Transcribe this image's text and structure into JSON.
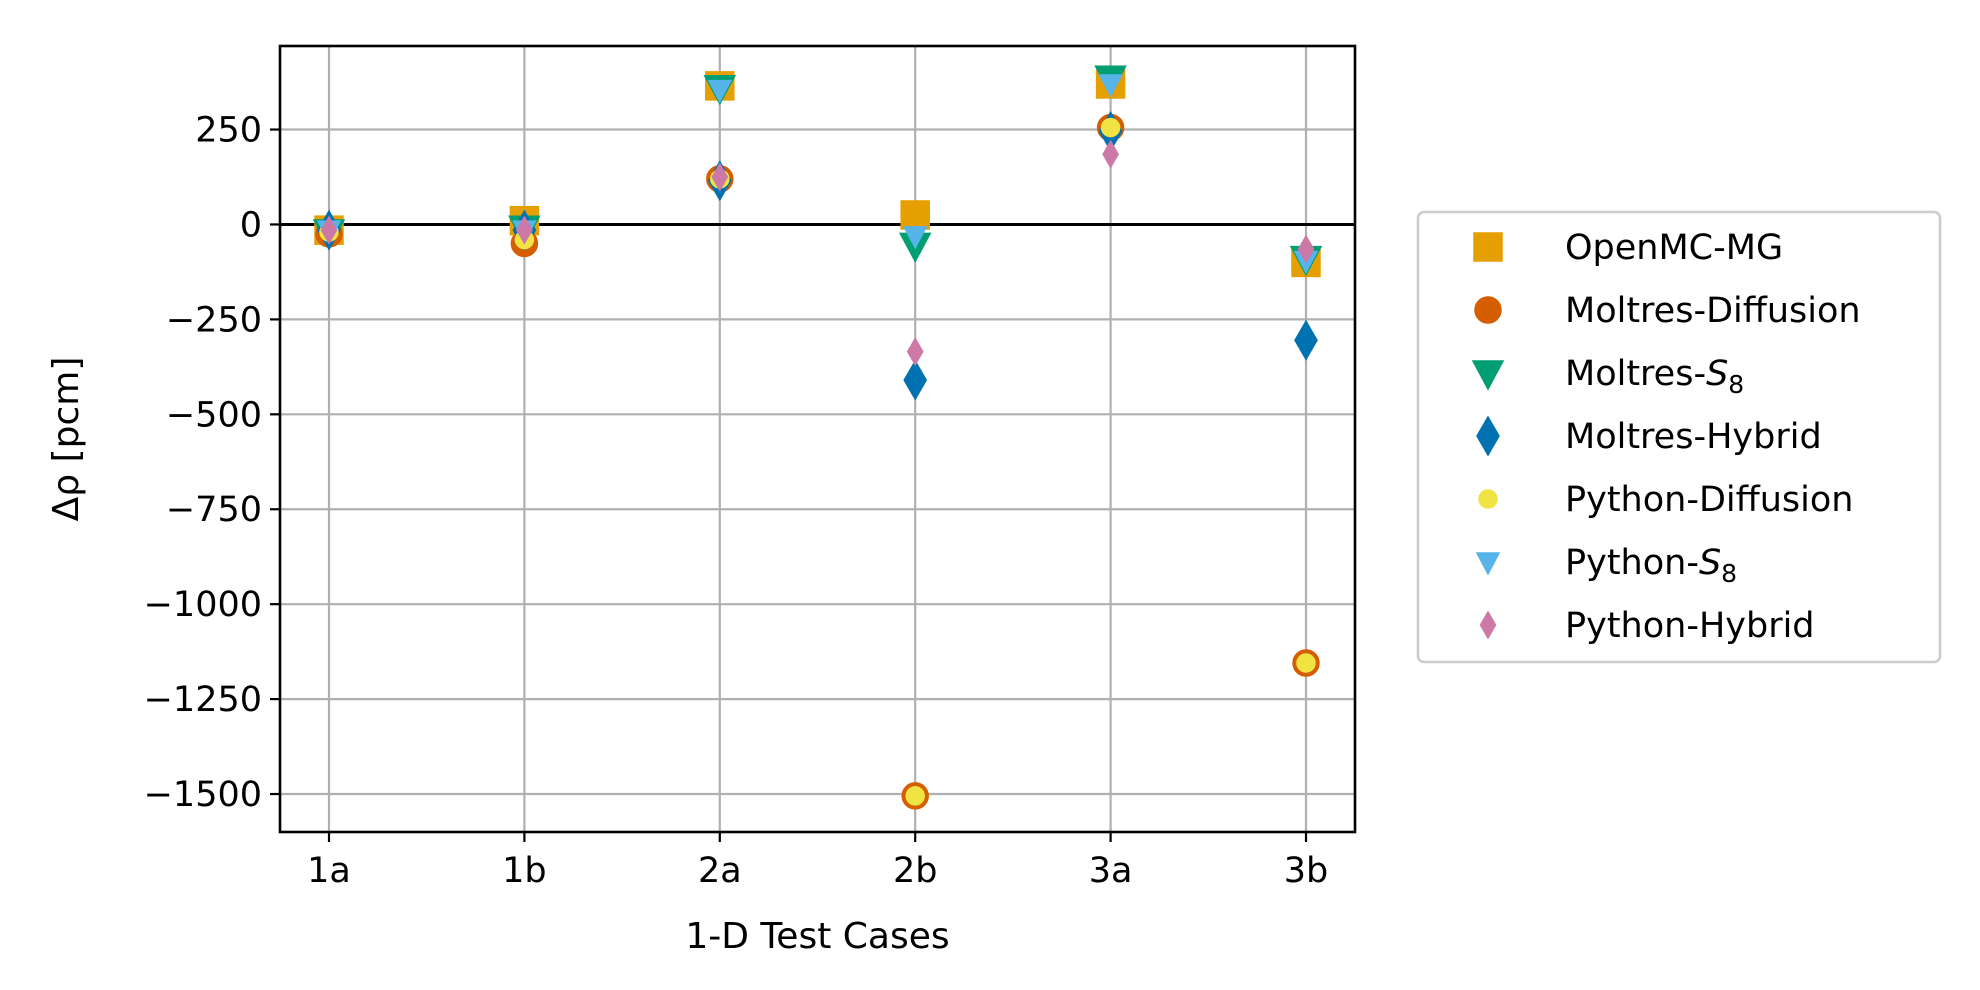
{
  "chart_data": {
    "type": "scatter",
    "xlabel": "1-D Test Cases",
    "ylabel": "Δρ [pcm]",
    "categories": [
      "1a",
      "1b",
      "2a",
      "2b",
      "3a",
      "3b"
    ],
    "ylim": [
      -1600,
      470
    ],
    "yticks": [
      250,
      0,
      -250,
      -500,
      -750,
      -1000,
      -1250,
      -1500
    ],
    "ytick_labels": [
      "250",
      "0",
      "−250",
      "−500",
      "−750",
      "−1000",
      "−1250",
      "−1500"
    ],
    "grid": true,
    "zero_line": true,
    "legend_position": "right, outside plot",
    "series": [
      {
        "name": "OpenMC-MG",
        "label_base": "OpenMC-MG",
        "label_sub": "",
        "marker": "square",
        "color": "#E69F00",
        "edge": "#E69F00",
        "values": [
          -15,
          10,
          365,
          25,
          370,
          -100
        ]
      },
      {
        "name": "Moltres-Diffusion",
        "label_base": "Moltres-Diffusion",
        "label_sub": "",
        "marker": "circle",
        "color": "#D55E00",
        "edge": "#D55E00",
        "values": [
          -25,
          -50,
          120,
          -1505,
          255,
          -1155
        ]
      },
      {
        "name": "Moltres-S8",
        "label_base": "Moltres-",
        "label_sub": "8",
        "marker": "triangle-down",
        "color": "#009E73",
        "edge": "#009E73",
        "values": [
          -20,
          -10,
          360,
          -55,
          385,
          -90
        ]
      },
      {
        "name": "Moltres-Hybrid",
        "label_base": "Moltres-Hybrid",
        "label_sub": "",
        "marker": "diamond",
        "color": "#0072B2",
        "edge": "#0072B2",
        "values": [
          -15,
          -15,
          115,
          -410,
          245,
          -305
        ]
      },
      {
        "name": "Python-Diffusion",
        "label_base": "Python-Diffusion",
        "label_sub": "",
        "marker": "circle-small",
        "color": "#F0E442",
        "edge": "#F0E442",
        "values": [
          -20,
          -40,
          120,
          -1505,
          255,
          -1155
        ]
      },
      {
        "name": "Python-S8",
        "label_base": "Python-",
        "label_sub": "8",
        "marker": "triangle-down-small",
        "color": "#56B4E9",
        "edge": "#56B4E9",
        "values": [
          -15,
          -15,
          355,
          -30,
          370,
          -95
        ]
      },
      {
        "name": "Python-Hybrid",
        "label_base": "Python-Hybrid",
        "label_sub": "",
        "marker": "diamond-small",
        "color": "#CC79A7",
        "edge": "#CC79A7",
        "values": [
          -15,
          -15,
          125,
          -335,
          185,
          -65
        ]
      }
    ]
  }
}
